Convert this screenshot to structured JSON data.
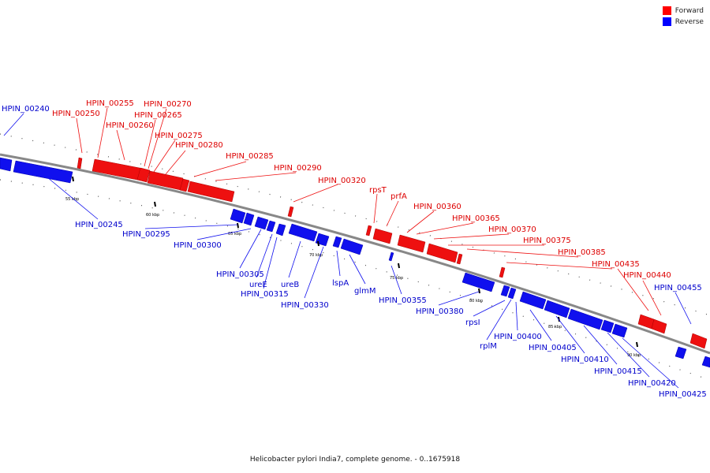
{
  "legend": {
    "forward": {
      "label": "Forward",
      "color": "#ff0000"
    },
    "reverse": {
      "label": "Reverse",
      "color": "#0000ff"
    }
  },
  "caption": "Helicobacter pylori India7, complete genome. - 0..1675918",
  "axis_ticks": [
    "55 kbp",
    "60 kbp",
    "65 kbp",
    "70 kbp",
    "75 kbp",
    "80 kbp",
    "85 kbp",
    "90 kbp"
  ],
  "forward_genes": [
    "HPIN_00250",
    "HPIN_00255",
    "HPIN_00260",
    "HPIN_00265",
    "HPIN_00270",
    "HPIN_00275",
    "HPIN_00280",
    "HPIN_00285",
    "HPIN_00290",
    "HPIN_00320",
    "rpsT",
    "prfA",
    "HPIN_00360",
    "HPIN_00365",
    "HPIN_00370",
    "HPIN_00375",
    "HPIN_00385",
    "HPIN_00435",
    "HPIN_00440"
  ],
  "reverse_genes": [
    "HPIN_00240",
    "HPIN_00245",
    "HPIN_00295",
    "HPIN_00300",
    "HPIN_00305",
    "ureE",
    "HPIN_00315",
    "ureB",
    "HPIN_00330",
    "lspA",
    "glmM",
    "HPIN_00355",
    "HPIN_00380",
    "rpsI",
    "rplM",
    "HPIN_00400",
    "HPIN_00405",
    "HPIN_00410",
    "HPIN_00415",
    "HPIN_00420",
    "HPIN_00425",
    "HPIN_00455"
  ]
}
